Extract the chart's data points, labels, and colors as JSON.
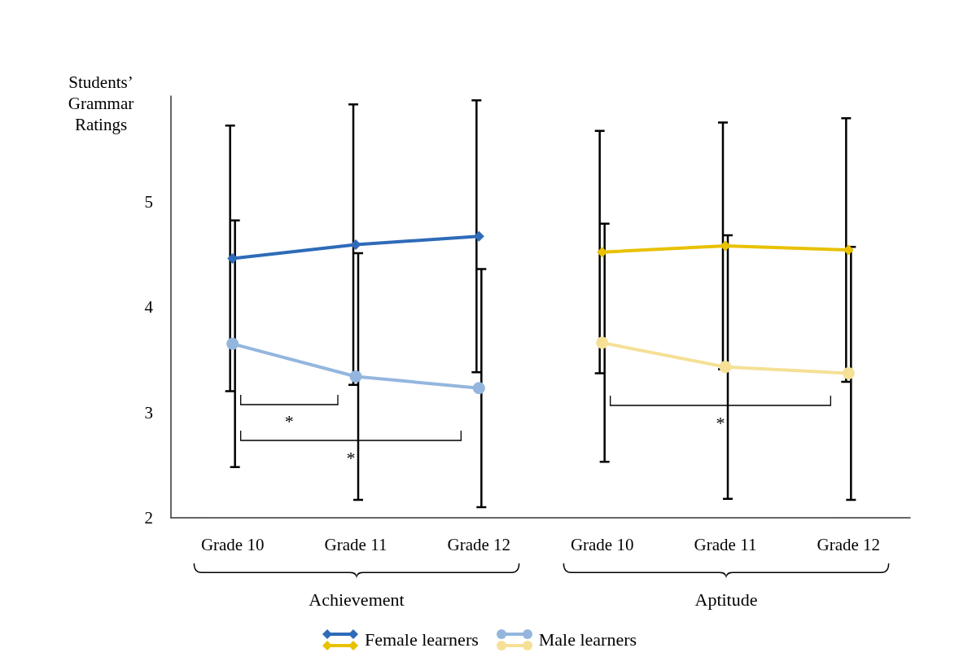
{
  "chart_data": {
    "type": "line",
    "ylabel": "Students’ Grammar Ratings",
    "categories": [
      "Grade 10",
      "Grade 11",
      "Grade 12",
      "Grade 10",
      "Grade 11",
      "Grade 12"
    ],
    "series": [
      {
        "name": "Female learners",
        "color": "#2e6bb8",
        "marker": "diamond",
        "values": [
          4.46,
          4.59,
          4.67,
          null,
          null,
          null
        ],
        "errors": [
          1.26,
          1.33,
          1.29,
          null,
          null,
          null
        ]
      },
      {
        "name": "Male learners",
        "color": "#94b6de",
        "marker": "circle",
        "values": [
          3.65,
          3.34,
          3.23,
          null,
          null,
          null
        ],
        "errors": [
          1.17,
          1.17,
          1.13,
          null,
          null,
          null
        ]
      },
      {
        "color": "#e8c100",
        "marker": "diamond",
        "values": [
          null,
          null,
          null,
          4.52,
          4.58,
          4.54
        ],
        "errors": [
          null,
          null,
          null,
          1.15,
          1.17,
          1.25
        ]
      },
      {
        "color": "#f5e096",
        "marker": "circle",
        "values": [
          null,
          null,
          null,
          3.66,
          3.43,
          3.37
        ],
        "errors": [
          null,
          null,
          null,
          1.13,
          1.25,
          1.2
        ]
      }
    ],
    "ylim": [
      2,
      6
    ],
    "yticks": [
      2,
      3,
      4,
      5
    ],
    "grid": false,
    "legend": "bottom",
    "annotations": [
      "*",
      "*",
      "*",
      "Achievement",
      "Aptitude"
    ]
  }
}
